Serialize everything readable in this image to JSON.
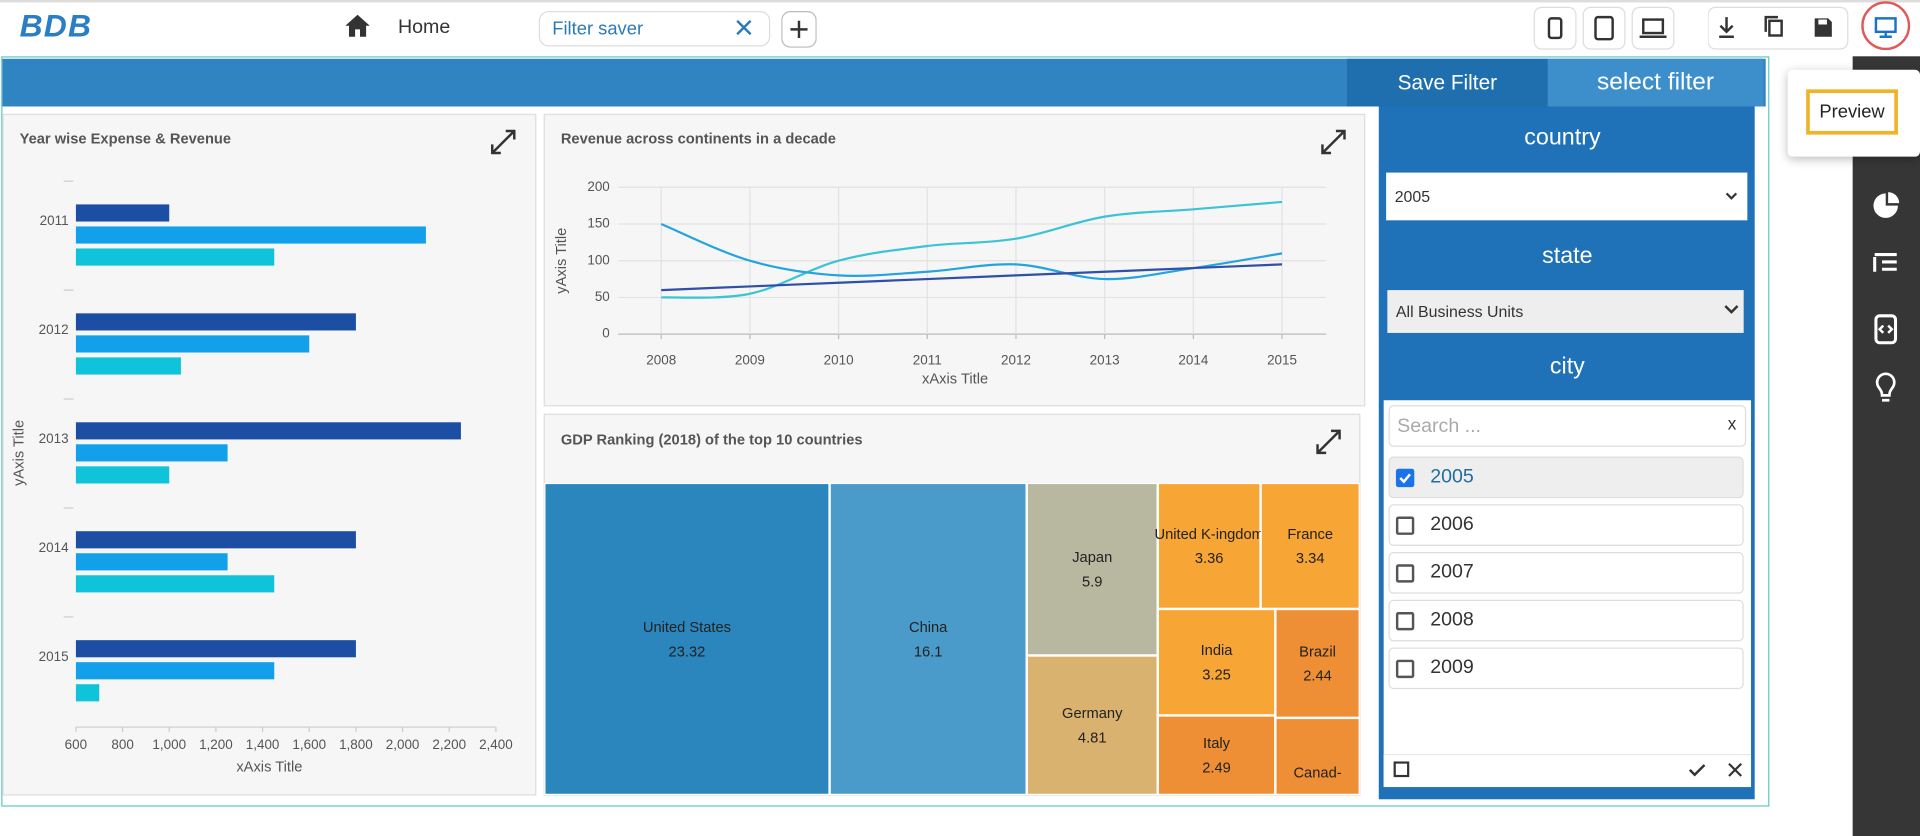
{
  "header": {
    "logo": "BDB",
    "home": "Home",
    "tab": "Filter saver"
  },
  "tooltip": "Preview",
  "filter_bar": {
    "save": "Save Filter",
    "select": "select filter"
  },
  "filter_panel": {
    "country": {
      "label": "country",
      "value": "2005"
    },
    "state": {
      "label": "state",
      "value": "All Business Units"
    },
    "city": {
      "label": "city",
      "search": "Search ...",
      "options": [
        {
          "label": "2005",
          "checked": true
        },
        {
          "label": "2006",
          "checked": false
        },
        {
          "label": "2007",
          "checked": false
        },
        {
          "label": "2008",
          "checked": false
        },
        {
          "label": "2009",
          "checked": false
        }
      ]
    }
  },
  "chart_data": [
    {
      "type": "hbar",
      "title": "Year wise Expense & Revenue",
      "x_label": "xAxis Title",
      "y_label": "yAxis Title",
      "categories": [
        "2011",
        "2012",
        "2013",
        "2014",
        "2015"
      ],
      "series": [
        {
          "color": "#1c4fa3",
          "values": [
            1000,
            1800,
            2250,
            1800,
            1800
          ]
        },
        {
          "color": "#12a0ea",
          "values": [
            2100,
            1600,
            1250,
            1250,
            1450
          ]
        },
        {
          "color": "#0fc3da",
          "values": [
            1450,
            1050,
            1000,
            1450,
            700
          ]
        }
      ],
      "xlim": [
        600,
        2400
      ],
      "xticks": [
        600,
        800,
        {
          "value": 1000,
          "label": "1,000"
        },
        {
          "value": 1200,
          "label": "1,200"
        },
        {
          "value": 1400,
          "label": "1,400"
        },
        {
          "value": 1600,
          "label": "1,600"
        },
        {
          "value": 1800,
          "label": "1,800"
        },
        {
          "value": 2000,
          "label": "2,000"
        },
        {
          "value": 2200,
          "label": "2,200"
        },
        {
          "value": 2400,
          "label": "2,400"
        }
      ]
    },
    {
      "type": "line",
      "title": "Revenue across continents in a decade",
      "x_label": "xAxis Title",
      "y_label": "yAxis Title",
      "categories": [
        "2008",
        "2009",
        "2010",
        "2011",
        "2012",
        "2013",
        "2014",
        "2015"
      ],
      "series": [
        {
          "color": "#3bc3d6",
          "values": [
            50,
            55,
            100,
            120,
            130,
            160,
            170,
            180
          ]
        },
        {
          "color": "#24a4de",
          "values": [
            150,
            100,
            80,
            85,
            95,
            75,
            90,
            110
          ]
        },
        {
          "color": "#2f4fa8",
          "values": [
            60,
            65,
            70,
            75,
            80,
            85,
            90,
            95
          ]
        }
      ],
      "ylim": [
        0,
        200
      ],
      "yticks": [
        0,
        50,
        100,
        150,
        200
      ],
      "grid": true
    },
    {
      "type": "treemap",
      "title": "GDP Ranking (2018) of the top 10 countries",
      "categories": [
        "United States",
        "China",
        "Japan",
        "Germany",
        "United K-ingdom",
        "France",
        "India",
        "Brazil",
        "Italy",
        "Canad-"
      ],
      "values": [
        23.32,
        16.1,
        5.9,
        4.81,
        3.36,
        3.34,
        3.25,
        2.44,
        2.49,
        1.73
      ],
      "value_labels": [
        "23.32",
        "16.1",
        "5.9",
        "4.81",
        "3.36",
        "3.34",
        "3.25",
        "2.44",
        "2.49",
        null
      ],
      "colors": [
        "#2b86bd",
        "#4a9bc9",
        "#b8b8a0",
        "#d9b26f",
        "#f7a535",
        "#f7a535",
        "#f7a535",
        "#ef8f35",
        "#ef8f35",
        "#ef8f35"
      ]
    }
  ]
}
